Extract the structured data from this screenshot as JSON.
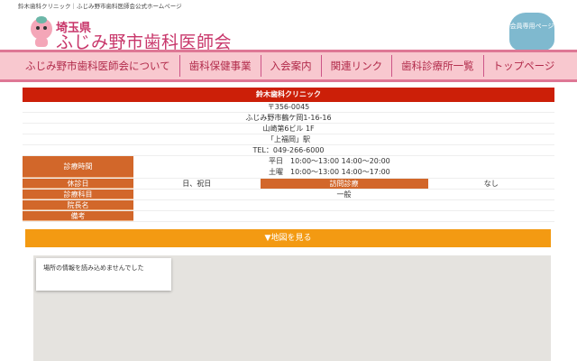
{
  "top_text": "鈴木歯科クリニック｜ふじみ野市歯科医師会公式ホームページ",
  "header": {
    "prefecture": "埼玉県",
    "association": "ふじみ野市歯科医師会",
    "members_button": "会員専用ページ"
  },
  "nav": [
    "ふじみ野市歯科医師会について",
    "歯科保健事業",
    "入会案内",
    "関連リンク",
    "歯科診療所一覧",
    "トップページ"
  ],
  "clinic": {
    "name": "鈴木歯科クリニック",
    "postal": "〒356-0045",
    "address1": "ふじみ野市鶴ケ岡1-16-16",
    "address2": "山崎第6ビル 1F",
    "station": "「上福岡」駅",
    "tel": "TEL：049-266-6000",
    "hours_label": "診療時間",
    "hours": [
      "平日　10:00～13:00 14:00～20:00",
      "土曜　10:00～13:00 14:00～17:00"
    ],
    "closed_label": "休診日",
    "closed": "日、祝日",
    "visit_label": "訪問診療",
    "visit": "なし",
    "dept_label": "診療科目",
    "dept": "一般",
    "director_label": "院長名",
    "director": "",
    "notes_label": "備考",
    "notes": ""
  },
  "map_button": "▼地図を見る",
  "map_error": "場所の情報を読み込めませんでした",
  "colors": {
    "pink": "#f8c8cf",
    "red": "#cc1f08",
    "orange": "#d2672a",
    "map_button": "#f39a12"
  }
}
